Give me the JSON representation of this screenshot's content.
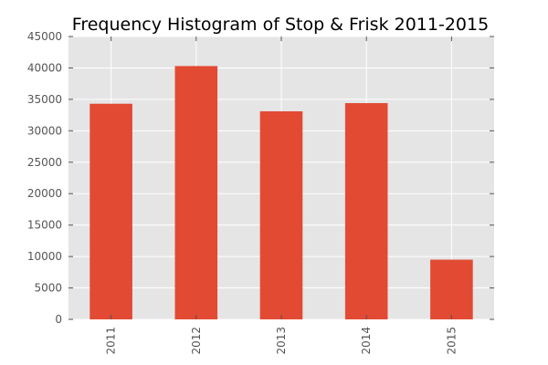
{
  "colors": {
    "bar": "#E24A33",
    "plot_background": "#E5E5E5",
    "grid": "#FFFFFF",
    "tick_text": "#555555"
  },
  "chart_data": {
    "type": "bar",
    "title": "Frequency Histogram of Stop & Frisk 2011-2015",
    "xlabel": "",
    "ylabel": "",
    "categories": [
      "2011",
      "2012",
      "2013",
      "2014",
      "2015"
    ],
    "values": [
      34300,
      40300,
      33100,
      34400,
      9500
    ],
    "ylim": [
      0,
      45000
    ],
    "yticks": [
      "0",
      "5000",
      "10000",
      "15000",
      "20000",
      "25000",
      "30000",
      "35000",
      "40000",
      "45000"
    ],
    "ytick_values": [
      0,
      5000,
      10000,
      15000,
      20000,
      25000,
      30000,
      35000,
      40000,
      45000
    ],
    "grid": true,
    "xtick_rotation": "vertical",
    "legend": "none"
  }
}
